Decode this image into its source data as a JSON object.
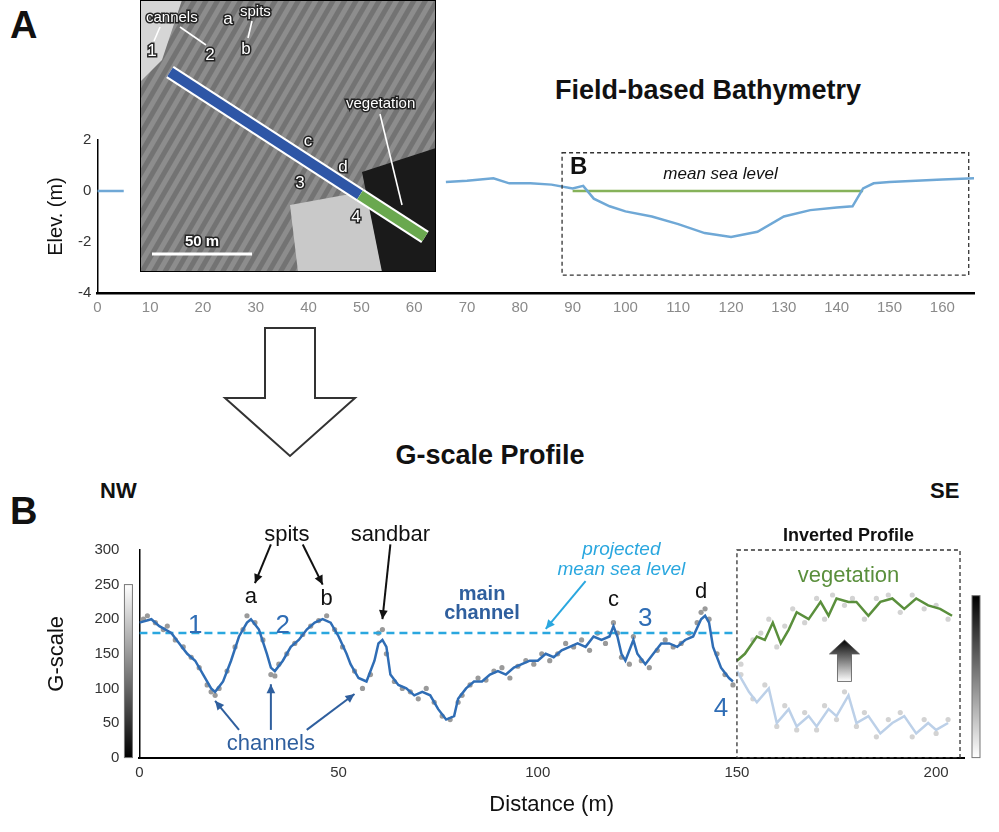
{
  "chart_data": [
    {
      "panel": "A",
      "type": "line",
      "title": "Field-based Bathymetry",
      "y_label": "Elev. (m)",
      "xlim": [
        0,
        166
      ],
      "xticks": [
        0,
        10,
        20,
        30,
        40,
        50,
        60,
        70,
        80,
        90,
        100,
        110,
        120,
        130,
        140,
        150,
        160
      ],
      "ylim": [
        -4,
        2
      ],
      "yticks": [
        -4,
        -2,
        0,
        2
      ],
      "grid": false,
      "series": [
        {
          "color": "#6fa8d6",
          "x": [
            0,
            3,
            5,
            30,
            66,
            70,
            75,
            78,
            82,
            86,
            90,
            92,
            94,
            97,
            100,
            105,
            110,
            115,
            120,
            125,
            130,
            135,
            140,
            143,
            145,
            147,
            150,
            155,
            160,
            166
          ],
          "values": [
            0,
            0,
            0,
            null,
            0.35,
            0.4,
            0.5,
            0.3,
            0.3,
            0.25,
            0.1,
            0.2,
            -0.3,
            -0.6,
            -0.8,
            -1.0,
            -1.3,
            -1.65,
            -1.8,
            -1.6,
            -1.0,
            -0.75,
            -0.65,
            -0.6,
            0.1,
            0.3,
            0.35,
            0.4,
            0.45,
            0.5
          ]
        },
        {
          "name": "mean sea level",
          "color": "#86b25a",
          "x": [
            90,
            145
          ],
          "values": [
            0,
            0
          ]
        }
      ],
      "box": {
        "label": "B",
        "x": [
          88,
          165
        ],
        "y": [
          -3.3,
          1.5
        ]
      },
      "inset": {
        "labels": [
          "cannels",
          "spits",
          "1",
          "a",
          "2",
          "b",
          "c",
          "3",
          "d",
          "4",
          "vegetation"
        ],
        "scale_bar": "50 m"
      }
    },
    {
      "panel": "B",
      "type": "line",
      "title": "G-scale Profile",
      "x_label": "Distance (m)",
      "y_label": "G-scale",
      "direction_labels": [
        "NW",
        "SE"
      ],
      "xlim": [
        0,
        207
      ],
      "xticks": [
        0,
        50,
        100,
        150,
        200
      ],
      "ylim": [
        0,
        300
      ],
      "yticks": [
        0,
        50,
        100,
        150,
        200,
        250,
        300
      ],
      "grid": false,
      "series": [
        {
          "color": "#2f6db5",
          "x": [
            0,
            3,
            5,
            8,
            10,
            12,
            14,
            16,
            18,
            19,
            21,
            23,
            25,
            27,
            28,
            30,
            32,
            33,
            34,
            36,
            38,
            40,
            42,
            44,
            46,
            48,
            50,
            52,
            53,
            55,
            57,
            59,
            60,
            61,
            62,
            63,
            65,
            67,
            69,
            71,
            73,
            75,
            77,
            79,
            80,
            82,
            84,
            86,
            88,
            90,
            92,
            94,
            96,
            98,
            100,
            102,
            104,
            106,
            108,
            110,
            112,
            114,
            116,
            118,
            119,
            120,
            121,
            122,
            124,
            125,
            127,
            129,
            131,
            133,
            135,
            137,
            139,
            141,
            142,
            143,
            144,
            146,
            148,
            149
          ],
          "values": [
            195,
            200,
            190,
            180,
            165,
            150,
            140,
            120,
            100,
            95,
            110,
            140,
            175,
            195,
            200,
            185,
            150,
            130,
            125,
            140,
            160,
            170,
            185,
            195,
            200,
            195,
            175,
            150,
            135,
            115,
            110,
            140,
            165,
            170,
            160,
            120,
            105,
            100,
            90,
            95,
            90,
            70,
            55,
            60,
            85,
            100,
            110,
            110,
            120,
            125,
            120,
            130,
            135,
            140,
            140,
            150,
            145,
            155,
            160,
            165,
            160,
            175,
            170,
            175,
            190,
            175,
            150,
            140,
            170,
            150,
            135,
            150,
            165,
            165,
            160,
            170,
            175,
            200,
            205,
            195,
            160,
            130,
            115,
            110
          ]
        },
        {
          "color": "#bcd0e8",
          "x": [
            150,
            153,
            155,
            158,
            160,
            163,
            165,
            168,
            170,
            173,
            175,
            178,
            180,
            183,
            186,
            189,
            192,
            195,
            198,
            200,
            203
          ],
          "values": [
            125,
            95,
            80,
            100,
            50,
            70,
            45,
            60,
            45,
            70,
            60,
            90,
            50,
            60,
            35,
            50,
            60,
            35,
            50,
            40,
            50
          ]
        },
        {
          "name": "vegetation",
          "color": "#5a8f3c",
          "x": [
            150,
            152,
            155,
            157,
            159,
            161,
            163,
            165,
            168,
            171,
            173,
            175,
            178,
            180,
            183,
            186,
            189,
            192,
            195,
            198,
            201,
            204
          ],
          "values": [
            140,
            150,
            175,
            170,
            195,
            165,
            185,
            210,
            200,
            225,
            205,
            230,
            225,
            225,
            205,
            225,
            230,
            215,
            230,
            220,
            215,
            205
          ]
        },
        {
          "name": "projected mean sea level",
          "color": "#2aa7df",
          "line_style": "dashed",
          "x": [
            0,
            150
          ],
          "values": [
            180,
            180
          ]
        },
        {
          "type": "scatter",
          "marker": "circle",
          "color": "#9a9a9a",
          "x": [
            1,
            2,
            4,
            6,
            7,
            9,
            11,
            13,
            15,
            17,
            18,
            19,
            20,
            22,
            24,
            26,
            27,
            29,
            31,
            33,
            34,
            35,
            37,
            39,
            41,
            43,
            45,
            47,
            49,
            51,
            54,
            56,
            58,
            60,
            61,
            62,
            64,
            66,
            68,
            70,
            72,
            74,
            76,
            78,
            80,
            81,
            83,
            85,
            87,
            89,
            91,
            93,
            95,
            97,
            99,
            101,
            103,
            105,
            107,
            109,
            111,
            113,
            115,
            117,
            119,
            120,
            121,
            123,
            124,
            126,
            128,
            130,
            132,
            134,
            136,
            138,
            140,
            141,
            142,
            143,
            145,
            147,
            149
          ],
          "values": [
            200,
            205,
            195,
            185,
            190,
            170,
            160,
            145,
            130,
            105,
            95,
            90,
            100,
            125,
            160,
            185,
            205,
            195,
            170,
            120,
            118,
            135,
            150,
            165,
            178,
            190,
            198,
            205,
            185,
            160,
            125,
            100,
            120,
            180,
            185,
            150,
            110,
            100,
            95,
            85,
            100,
            80,
            60,
            55,
            80,
            90,
            105,
            115,
            112,
            125,
            130,
            115,
            132,
            140,
            135,
            150,
            140,
            150,
            165,
            160,
            170,
            155,
            180,
            165,
            195,
            180,
            145,
            135,
            175,
            140,
            130,
            155,
            170,
            160,
            165,
            180,
            195,
            210,
            215,
            200,
            150,
            120,
            105
          ]
        },
        {
          "type": "scatter",
          "marker": "circle",
          "color": "#d3d3d3",
          "x": [
            151,
            154,
            157,
            160,
            162,
            165,
            167,
            170,
            172,
            175,
            177,
            180,
            182,
            185,
            188,
            191,
            194,
            197,
            200,
            203,
            151,
            154,
            156,
            158,
            160,
            162,
            164,
            167,
            170,
            172,
            174,
            177,
            179,
            182,
            185,
            188,
            191,
            194,
            197,
            200,
            203
          ],
          "values": [
            120,
            85,
            105,
            45,
            75,
            40,
            65,
            40,
            75,
            55,
            95,
            45,
            65,
            30,
            55,
            65,
            30,
            55,
            35,
            55,
            135,
            170,
            180,
            200,
            160,
            190,
            215,
            195,
            230,
            200,
            235,
            220,
            230,
            200,
            230,
            235,
            210,
            235,
            215,
            220,
            200
          ]
        }
      ],
      "box": {
        "label": "Inverted Profile",
        "x": [
          150,
          206
        ],
        "y": [
          0,
          300
        ]
      },
      "annotations": [
        "spits",
        "sandbar",
        "main channel",
        "channels",
        "a",
        "b",
        "c",
        "d",
        "1",
        "2",
        "3",
        "4"
      ]
    }
  ]
}
